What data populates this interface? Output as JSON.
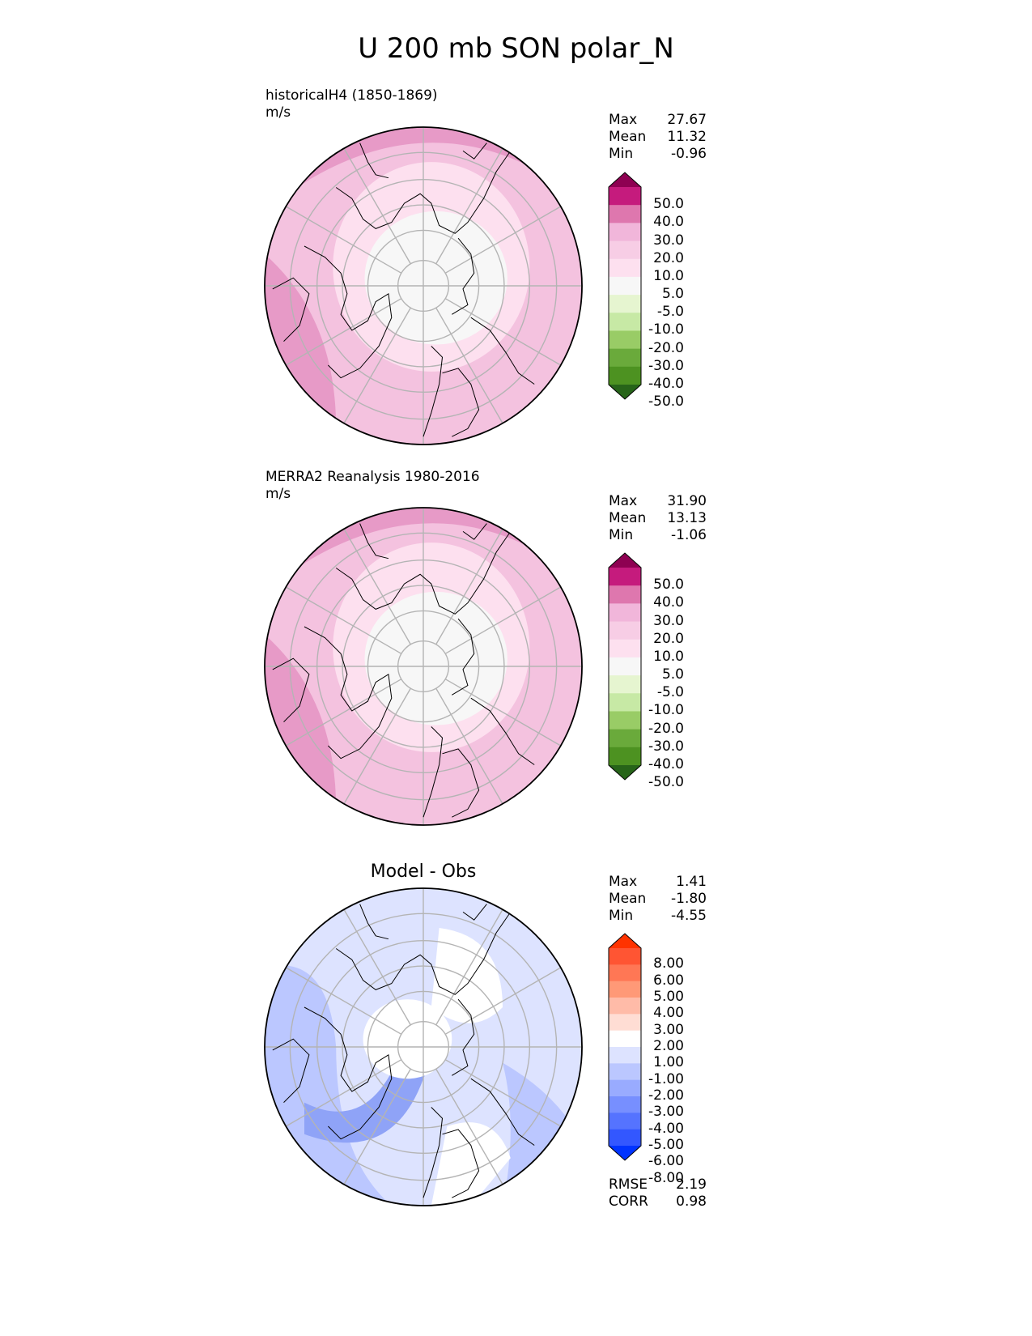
{
  "figure": {
    "title": "U 200 mb SON polar_N"
  },
  "chart_data": [
    {
      "type": "heatmap",
      "projection": "north-polar-stereographic",
      "title": "historicalH4 (1850-1869)",
      "units": "m/s",
      "stats": {
        "max": {
          "label": "Max",
          "value": "27.67"
        },
        "mean": {
          "label": "Mean",
          "value": "11.32"
        },
        "min": {
          "label": "Min",
          "value": "-0.96"
        }
      },
      "colorbar": {
        "labels": [
          "50.0",
          "40.0",
          "30.0",
          "20.0",
          "10.0",
          "5.0",
          "-5.0",
          "-10.0",
          "-20.0",
          "-30.0",
          "-40.0",
          "-50.0"
        ],
        "colors": [
          "#8e0152",
          "#c51b7d",
          "#de77ae",
          "#f1b6da",
          "#f7cde5",
          "#fde0ef",
          "#f7f7f7",
          "#e6f5d0",
          "#c7e9a5",
          "#99cc66",
          "#6aaa3b",
          "#4d9221",
          "#276419"
        ]
      },
      "field": [
        {
          "value": 25,
          "color": "#e79ac7",
          "region": "outer-ring-band"
        },
        {
          "value": 15,
          "color": "#f4c2df",
          "region": "mid-latitudes"
        },
        {
          "value": 7,
          "color": "#fde0ef",
          "region": "high-latitudes"
        },
        {
          "value": 0,
          "color": "#f7f7f7",
          "region": "polar-cap"
        }
      ]
    },
    {
      "type": "heatmap",
      "projection": "north-polar-stereographic",
      "title": "MERRA2 Reanalysis 1980-2016",
      "units": "m/s",
      "stats": {
        "max": {
          "label": "Max",
          "value": "31.90"
        },
        "mean": {
          "label": "Mean",
          "value": "13.13"
        },
        "min": {
          "label": "Min",
          "value": "-1.06"
        }
      },
      "colorbar": {
        "labels": [
          "50.0",
          "40.0",
          "30.0",
          "20.0",
          "10.0",
          "5.0",
          "-5.0",
          "-10.0",
          "-20.0",
          "-30.0",
          "-40.0",
          "-50.0"
        ],
        "colors": [
          "#8e0152",
          "#c51b7d",
          "#de77ae",
          "#f1b6da",
          "#f7cde5",
          "#fde0ef",
          "#f7f7f7",
          "#e6f5d0",
          "#c7e9a5",
          "#99cc66",
          "#6aaa3b",
          "#4d9221",
          "#276419"
        ]
      },
      "field": [
        {
          "value": 25,
          "color": "#e79ac7",
          "region": "outer-ring-band"
        },
        {
          "value": 15,
          "color": "#f4c2df",
          "region": "mid-latitudes"
        },
        {
          "value": 7,
          "color": "#fde0ef",
          "region": "high-latitudes"
        },
        {
          "value": 0,
          "color": "#f7f7f7",
          "region": "polar-cap"
        }
      ]
    },
    {
      "type": "heatmap",
      "projection": "north-polar-stereographic",
      "title": "Model - Obs",
      "stats": {
        "max": {
          "label": "Max",
          "value": "1.41"
        },
        "mean": {
          "label": "Mean",
          "value": "-1.80"
        },
        "min": {
          "label": "Min",
          "value": "-4.55"
        },
        "rmse": {
          "label": "RMSE",
          "value": "2.19"
        },
        "corr": {
          "label": "CORR",
          "value": "0.98"
        }
      },
      "colorbar": {
        "labels": [
          "8.00",
          "6.00",
          "5.00",
          "4.00",
          "3.00",
          "2.00",
          "1.00",
          "-1.00",
          "-2.00",
          "-3.00",
          "-4.00",
          "-5.00",
          "-6.00",
          "-8.00"
        ],
        "colors": [
          "#ff3300",
          "#ff5533",
          "#ff7755",
          "#ff9977",
          "#ffbba8",
          "#ffddd4",
          "#ffffff",
          "#dde3ff",
          "#bbc7ff",
          "#99abff",
          "#778fff",
          "#5573ff",
          "#3357ff",
          "#0033ff"
        ]
      },
      "field": [
        {
          "value": -1.5,
          "color": "#dde3ff",
          "region": "background"
        },
        {
          "value": -2.5,
          "color": "#bbc7ff",
          "region": "outer-ring-band"
        },
        {
          "value": -3.5,
          "color": "#8fa3f7",
          "region": "atlantic-siberia-band"
        },
        {
          "value": 0,
          "color": "#ffffff",
          "region": "neutral-zones"
        }
      ]
    }
  ]
}
